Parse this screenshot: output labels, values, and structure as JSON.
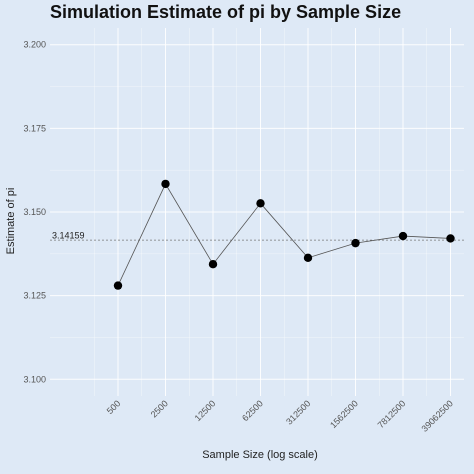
{
  "chart_data": {
    "type": "line",
    "title": "Simulation Estimate of pi by Sample Size",
    "xlabel": "Sample Size (log scale)",
    "ylabel": "Estimate of pi",
    "x_scale": "log",
    "categories": [
      "500",
      "2500",
      "12500",
      "62500",
      "312500",
      "1562500",
      "7812500",
      "39062500"
    ],
    "values": [
      3.128,
      3.1584,
      3.1344,
      3.1526,
      3.1363,
      3.1407,
      3.1428,
      3.1421
    ],
    "ylim": [
      3.095,
      3.205
    ],
    "yticks": [
      3.1,
      3.125,
      3.15,
      3.175,
      3.2
    ],
    "ytick_labels": [
      "3.100",
      "3.125",
      "3.150",
      "3.175",
      "3.200"
    ],
    "reference_line": {
      "value": 3.14159,
      "label": "3.14159"
    },
    "grid": true,
    "colors": {
      "background": "#dee9f6",
      "grid": "#ffffff",
      "line": "#555555",
      "point": "#000000",
      "reference": "#777777"
    }
  }
}
